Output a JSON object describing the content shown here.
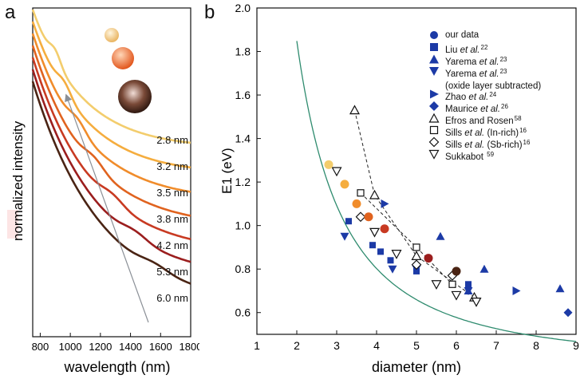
{
  "panel_a": {
    "letter": "a",
    "chart_data": {
      "type": "line",
      "xlabel": "wavelength (nm)",
      "ylabel": "normalized intensity",
      "xlim": [
        750,
        1800
      ],
      "xticks": [
        800,
        1000,
        1200,
        1400,
        1600,
        1800
      ],
      "series": [
        {
          "name": "2.8 nm",
          "label": "2.8 nm",
          "color": "#f3cd6d",
          "peak_nm": 900
        },
        {
          "name": "3.2 nm",
          "label": "3.2 nm",
          "color": "#f5ad3e",
          "peak_nm": 960
        },
        {
          "name": "3.5 nm",
          "label": "3.5 nm",
          "color": "#f08c2b",
          "peak_nm": 1050
        },
        {
          "name": "3.8 nm",
          "label": "3.8 nm",
          "color": "#e0631f",
          "peak_nm": 1160
        },
        {
          "name": "4.2 nm",
          "label": "4.2 nm",
          "color": "#c83a22",
          "peak_nm": 1280
        },
        {
          "name": "5.3 nm",
          "label": "5.3 nm",
          "color": "#9b1e1e",
          "peak_nm": 1430
        },
        {
          "name": "6.0 nm",
          "label": "6.0 nm",
          "color": "#4a2414",
          "peak_nm": 1560
        }
      ],
      "sphere_colors": [
        "#f5d28a",
        "#ec6a2a",
        "#3a2018"
      ]
    }
  },
  "panel_b": {
    "letter": "b",
    "chart_data": {
      "type": "scatter",
      "xlabel": "diameter (nm)",
      "ylabel": "E1 (eV)",
      "xlim": [
        1,
        9
      ],
      "ylim": [
        0.5,
        2.0
      ],
      "xticks": [
        1,
        2,
        3,
        4,
        5,
        6,
        7,
        8,
        9
      ],
      "yticks": [
        0.6,
        0.8,
        1.0,
        1.2,
        1.4,
        1.6,
        1.8,
        2.0
      ],
      "fit_curve": {
        "color": "#2e8b6e",
        "a": 0.1,
        "b": 9.1,
        "c": 1.75
      },
      "our_data": [
        {
          "x": 2.8,
          "y": 1.28,
          "color": "#f3cd6d"
        },
        {
          "x": 3.2,
          "y": 1.19,
          "color": "#f5ad3e"
        },
        {
          "x": 3.5,
          "y": 1.1,
          "color": "#f08c2b"
        },
        {
          "x": 3.8,
          "y": 1.04,
          "color": "#e0631f"
        },
        {
          "x": 4.2,
          "y": 0.985,
          "color": "#c83a22"
        },
        {
          "x": 5.3,
          "y": 0.85,
          "color": "#9b1e1e"
        },
        {
          "x": 6.0,
          "y": 0.79,
          "color": "#4a2414"
        }
      ],
      "liu": [
        {
          "x": 3.3,
          "y": 1.02
        },
        {
          "x": 3.9,
          "y": 0.91
        },
        {
          "x": 4.1,
          "y": 0.88
        },
        {
          "x": 4.35,
          "y": 0.84
        },
        {
          "x": 5.0,
          "y": 0.79
        },
        {
          "x": 6.3,
          "y": 0.73
        }
      ],
      "yarema": [
        {
          "x": 5.6,
          "y": 0.95
        },
        {
          "x": 6.7,
          "y": 0.8
        },
        {
          "x": 8.6,
          "y": 0.71
        },
        {
          "x": 6.3,
          "y": 0.7
        }
      ],
      "yarema_oxide": [
        {
          "x": 3.2,
          "y": 0.95
        },
        {
          "x": 4.4,
          "y": 0.8
        },
        {
          "x": 5.0,
          "y": 0.8
        },
        {
          "x": 6.3,
          "y": 0.7
        }
      ],
      "zhao": [
        {
          "x": 4.2,
          "y": 1.1
        },
        {
          "x": 7.5,
          "y": 0.7
        }
      ],
      "maurice": [
        {
          "x": 8.8,
          "y": 0.6
        }
      ],
      "efros_rosen": [
        {
          "x": 3.45,
          "y": 1.53
        },
        {
          "x": 3.95,
          "y": 1.14
        },
        {
          "x": 5.0,
          "y": 0.86
        },
        {
          "x": 6.45,
          "y": 0.67
        }
      ],
      "sills_in": [
        {
          "x": 3.6,
          "y": 1.15
        },
        {
          "x": 5.0,
          "y": 0.9
        },
        {
          "x": 5.9,
          "y": 0.73
        }
      ],
      "sills_sb": [
        {
          "x": 3.6,
          "y": 1.04
        },
        {
          "x": 5.0,
          "y": 0.82
        },
        {
          "x": 5.9,
          "y": 0.77
        }
      ],
      "sukkabot": [
        {
          "x": 3.0,
          "y": 1.25
        },
        {
          "x": 3.95,
          "y": 0.97
        },
        {
          "x": 4.5,
          "y": 0.87
        },
        {
          "x": 5.5,
          "y": 0.73
        },
        {
          "x": 6.0,
          "y": 0.68
        },
        {
          "x": 6.5,
          "y": 0.65
        }
      ],
      "dashed_lines": [
        [
          "efros_rosen"
        ],
        [
          "sills_in"
        ]
      ],
      "marker_color": "#1c3aa6",
      "legend": {
        "our_data": "our data",
        "liu": "Liu",
        "liu_etal": "et al.",
        "liu_ref": "22",
        "yarema": "Yarema",
        "yarema_etal": "et al.",
        "yarema_ref": "23",
        "yarema_oxide": "Yarema",
        "yarema_oxide_etal": "et al.",
        "yarema_oxide_ref": "23",
        "yarema_oxide_note": "(oxide layer subtracted)",
        "zhao": "Zhao",
        "zhao_etal": "et al.",
        "zhao_ref": "24",
        "maurice": "Maurice",
        "maurice_etal": "et al.",
        "maurice_ref": "26",
        "efros": "Efros and Rosen",
        "efros_ref": "58",
        "sills_in": "Sills",
        "sills_in_etal": "et al.",
        "sills_in_note": "(In-rich)",
        "sills_in_ref": "16",
        "sills_sb": "Sills",
        "sills_sb_etal": "et al.",
        "sills_sb_note": "(Sb-rich)",
        "sills_sb_ref": "16",
        "sukkabot": "Sukkabot",
        "sukkabot_ref": "59"
      }
    }
  }
}
